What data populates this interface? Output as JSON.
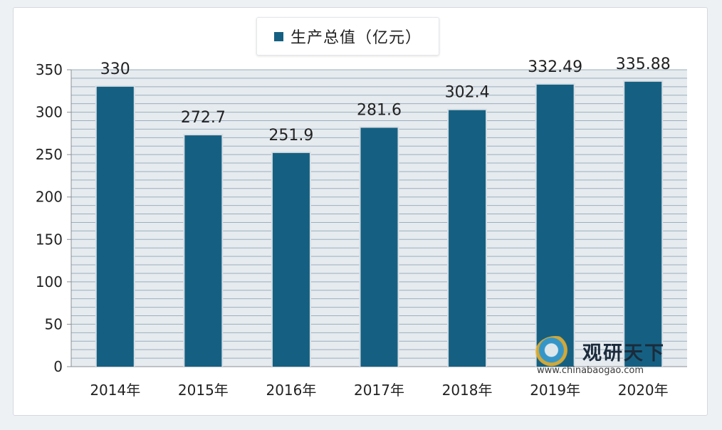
{
  "chart_data": {
    "type": "bar",
    "categories": [
      "2014年",
      "2015年",
      "2016年",
      "2017年",
      "2018年",
      "2019年",
      "2020年"
    ],
    "series": [
      {
        "name": "生产总值（亿元）",
        "values": [
          330,
          272.7,
          251.9,
          281.6,
          302.4,
          332.49,
          335.88
        ]
      }
    ],
    "data_labels": [
      "330",
      "272.7",
      "251.9",
      "281.6",
      "302.4",
      "332.49",
      "335.88"
    ],
    "yticks": [
      "0",
      "50",
      "100",
      "150",
      "200",
      "250",
      "300",
      "350"
    ],
    "ylim": [
      0,
      350
    ],
    "grid": true,
    "legend_position": "top-center",
    "bar_color": "#156082",
    "grid_color": "#9aaebd",
    "plot_background": "#e6ebef"
  },
  "watermark": {
    "name": "观研天下",
    "url": "www.chinabaogao.com"
  }
}
